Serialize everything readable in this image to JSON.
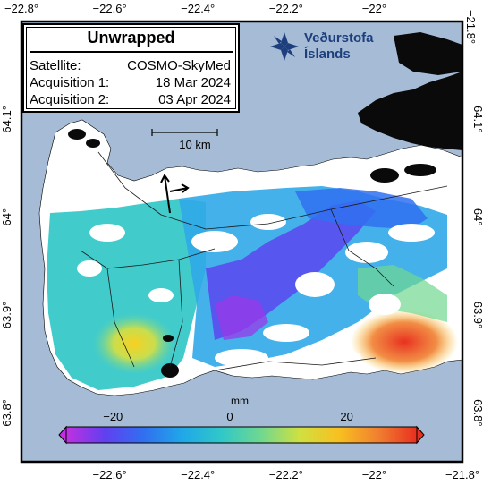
{
  "info": {
    "title": "Unwrapped",
    "rows": [
      {
        "key": "Satellite:",
        "value": "COSMO-SkyMed"
      },
      {
        "key": "Acquisition 1:",
        "value": "18 Mar 2024"
      },
      {
        "key": "Acquisition 2:",
        "value": "03 Apr 2024"
      }
    ]
  },
  "logo": {
    "line1": "Veðurstofa",
    "line2": "Íslands"
  },
  "scalebar": {
    "label": "10 km"
  },
  "colorbar": {
    "unit": "mm",
    "ticks": [
      "−20",
      "0",
      "20"
    ],
    "min": -28,
    "max": 32,
    "colors": [
      "#c030e0",
      "#6040f0",
      "#3070f0",
      "#20a8e8",
      "#30c8c8",
      "#70d890",
      "#d0e040",
      "#f8c020",
      "#f08030",
      "#e83020"
    ]
  },
  "axes": {
    "top_lon": [
      "−22.8°",
      "−22.6°",
      "−22.4°",
      "−22.2°",
      "−22°",
      "−21.8°"
    ],
    "bottom_lon": [
      "−22.6°",
      "−22.4°",
      "−22.2°",
      "−22°",
      "−21.8°"
    ],
    "left_lat": [
      "64.1°",
      "64°",
      "63.9°",
      "63.8°"
    ],
    "right_lat": [
      "64.1°",
      "64°",
      "63.9°",
      "63.8°"
    ],
    "lon_values": [
      -22.8,
      -22.6,
      -22.4,
      -22.2,
      -22.0,
      -21.8
    ],
    "lat_values": [
      64.1,
      64.0,
      63.9,
      63.8
    ]
  },
  "colors": {
    "sea": "#a6bcd6",
    "land": "#ffffff",
    "ice_logo": "#1d3f7d"
  }
}
